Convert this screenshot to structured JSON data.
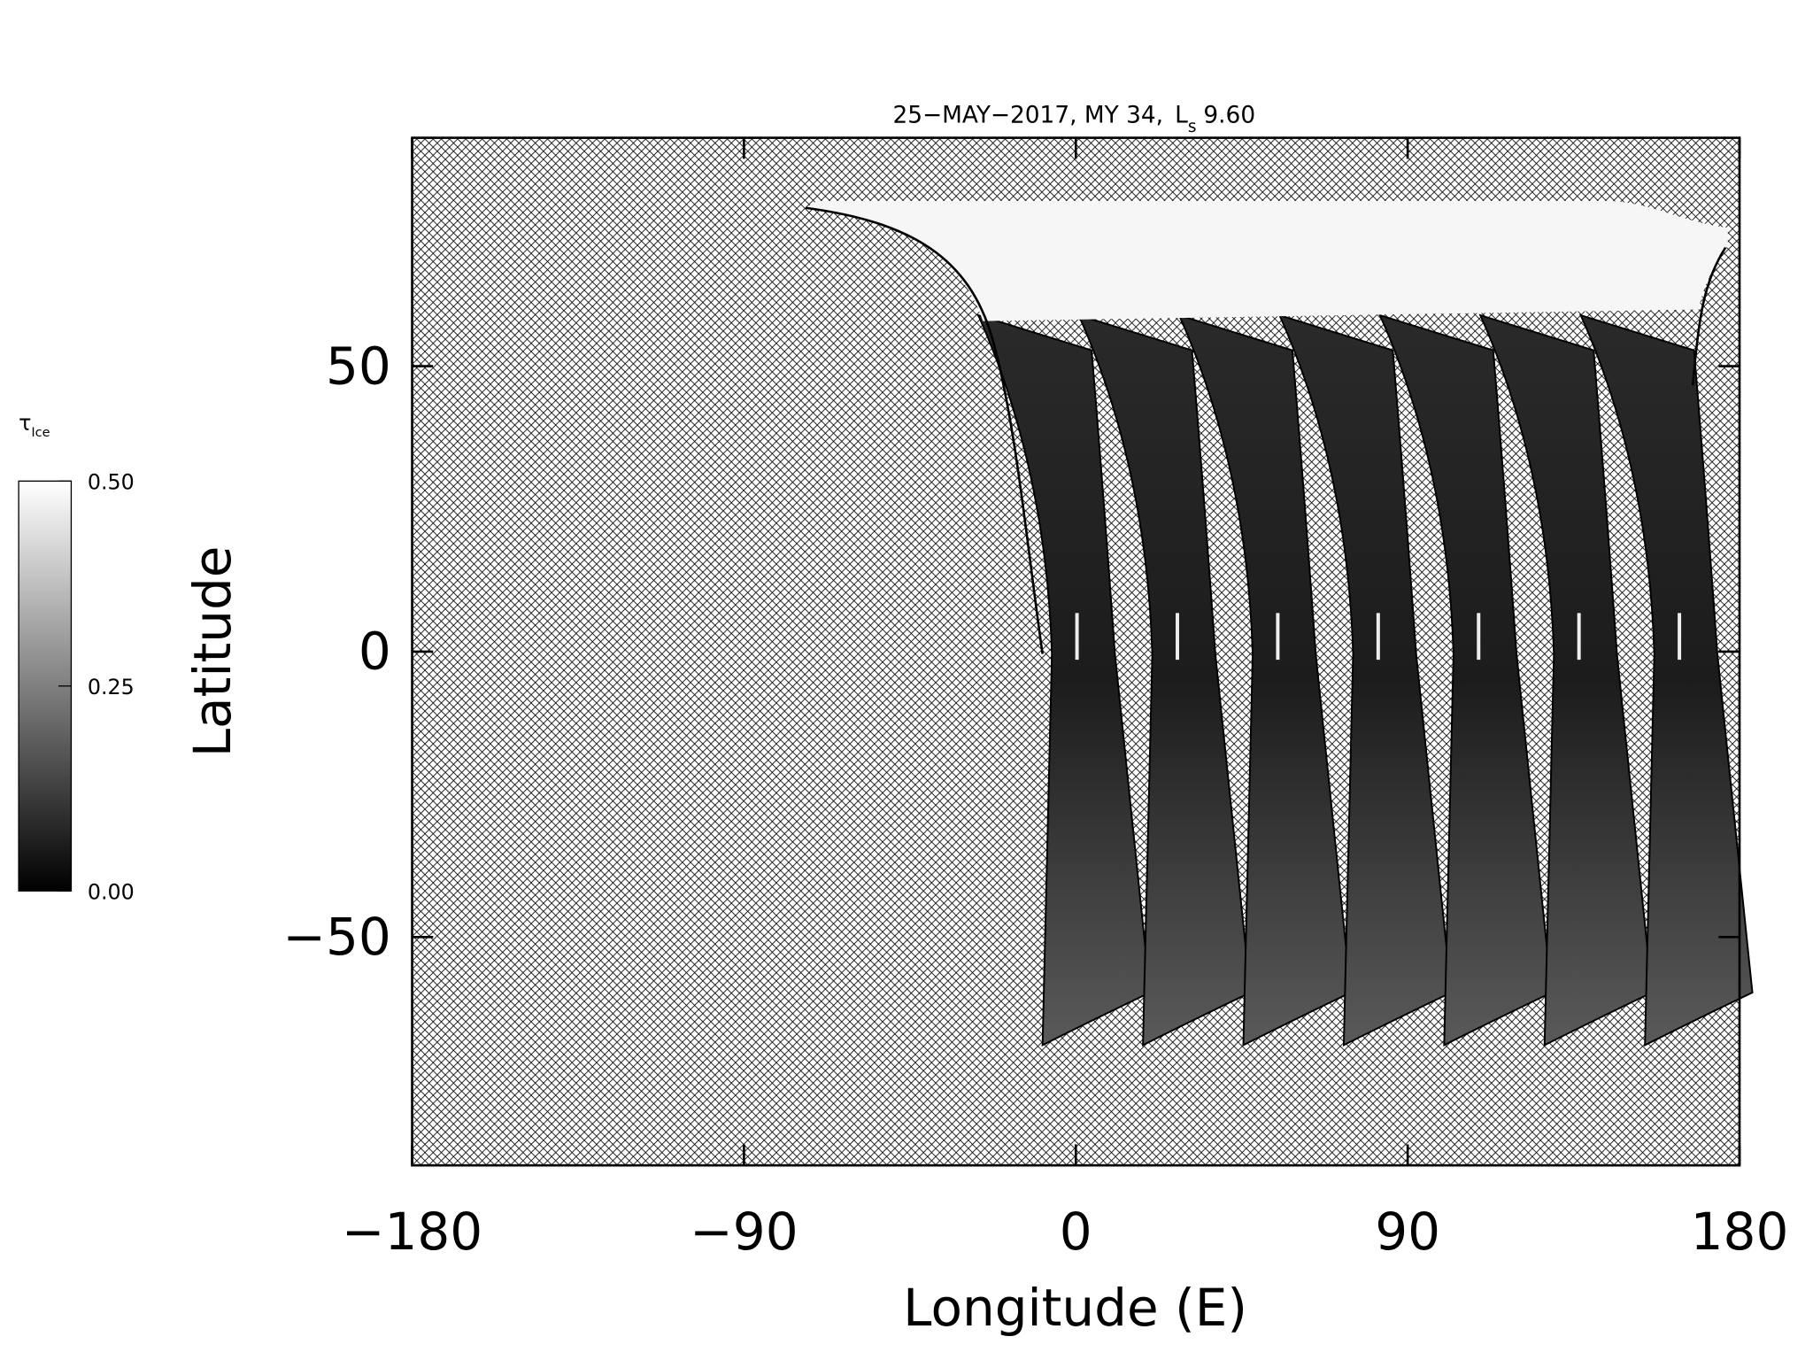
{
  "chart_data": {
    "type": "map",
    "title": {
      "text": "25−MAY−2017, MY 34,",
      "ls_symbol": "L",
      "ls_subscript": "s",
      "ls_value": "9.60"
    },
    "xlabel": "Longitude (E)",
    "ylabel": "Latitude",
    "xlim": [
      -180,
      180
    ],
    "ylim": [
      -90,
      90
    ],
    "xticks": [
      {
        "value": -180,
        "label": "−180"
      },
      {
        "value": -90,
        "label": "−90"
      },
      0,
      90,
      180
    ],
    "yticks": [
      {
        "value": -50,
        "label": "−50"
      },
      0,
      50
    ],
    "colorbar": {
      "symbol": "τ",
      "subscript": "Ice",
      "lim": [
        0,
        0.5
      ],
      "ticks": [
        {
          "value": 0,
          "label": "0.00"
        },
        {
          "value": 0.25,
          "label": "0.25"
        },
        {
          "value": 0.5,
          "label": "0.50"
        }
      ],
      "colors": [
        "#000000",
        "#ffffff"
      ]
    }
  }
}
